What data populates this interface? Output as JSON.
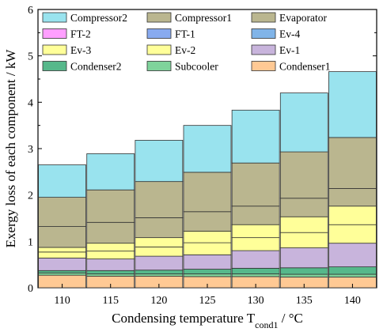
{
  "chart_data": {
    "type": "stacked-bar",
    "categories": [
      "110",
      "115",
      "120",
      "125",
      "130",
      "135",
      "140"
    ],
    "xlabel": {
      "main": "Condensing temperature T",
      "sub": "cond1",
      "unit": " / °C"
    },
    "ylabel": "Exergy loss of each component / kW",
    "ylim": [
      0,
      6
    ],
    "yticks": [
      "0",
      "1",
      "2",
      "3",
      "4",
      "5",
      "6"
    ],
    "legend_position": "top",
    "series": [
      {
        "name": "Condenser1",
        "color": "#ffc994",
        "values": [
          0.27,
          0.25,
          0.25,
          0.24,
          0.24,
          0.23,
          0.23
        ]
      },
      {
        "name": "Subcooler",
        "color": "#7fd39b",
        "values": [
          0.05,
          0.05,
          0.05,
          0.06,
          0.06,
          0.06,
          0.06
        ]
      },
      {
        "name": "Condenser2",
        "color": "#56b88b",
        "values": [
          0.05,
          0.07,
          0.08,
          0.1,
          0.12,
          0.14,
          0.16
        ]
      },
      {
        "name": "Ev-1",
        "color": "#c8b4dc",
        "values": [
          0.27,
          0.25,
          0.3,
          0.31,
          0.38,
          0.43,
          0.51
        ]
      },
      {
        "name": "Ev-2",
        "color": "#ffff99",
        "values": [
          0.13,
          0.17,
          0.2,
          0.26,
          0.28,
          0.33,
          0.4
        ]
      },
      {
        "name": "Ev-4",
        "color": "#80b4e8",
        "values": [
          0.0,
          0.0,
          0.0,
          0.0,
          0.0,
          0.0,
          0.0
        ]
      },
      {
        "name": "FT-1",
        "color": "#88aaf0",
        "values": [
          0.0,
          0.0,
          0.0,
          0.0,
          0.0,
          0.0,
          0.0
        ]
      },
      {
        "name": "FT-2",
        "color": "#ff9fff",
        "values": [
          0.0,
          0.0,
          0.0,
          0.0,
          0.0,
          0.0,
          0.0
        ]
      },
      {
        "name": "Ev-3",
        "color": "#ffff99",
        "values": [
          0.1,
          0.17,
          0.2,
          0.25,
          0.28,
          0.34,
          0.4
        ]
      },
      {
        "name": "Evaporator",
        "color": "#bab68f",
        "values": [
          0.45,
          0.45,
          0.43,
          0.42,
          0.4,
          0.4,
          0.38
        ]
      },
      {
        "name": "Compressor1",
        "color": "#bab68f",
        "values": [
          0.63,
          0.7,
          0.78,
          0.85,
          0.93,
          1.0,
          1.1
        ]
      },
      {
        "name": "Compressor2",
        "color": "#99e3ee",
        "values": [
          0.7,
          0.78,
          0.89,
          1.01,
          1.14,
          1.27,
          1.42
        ]
      }
    ],
    "legend_rows": [
      [
        "Compressor2",
        "Compressor1",
        "Evaporator"
      ],
      [
        "FT-2",
        "FT-1",
        "Ev-4"
      ],
      [
        "Ev-3",
        "Ev-2",
        "Ev-1"
      ],
      [
        "Condenser2",
        "Subcooler",
        "Condenser1"
      ]
    ]
  }
}
